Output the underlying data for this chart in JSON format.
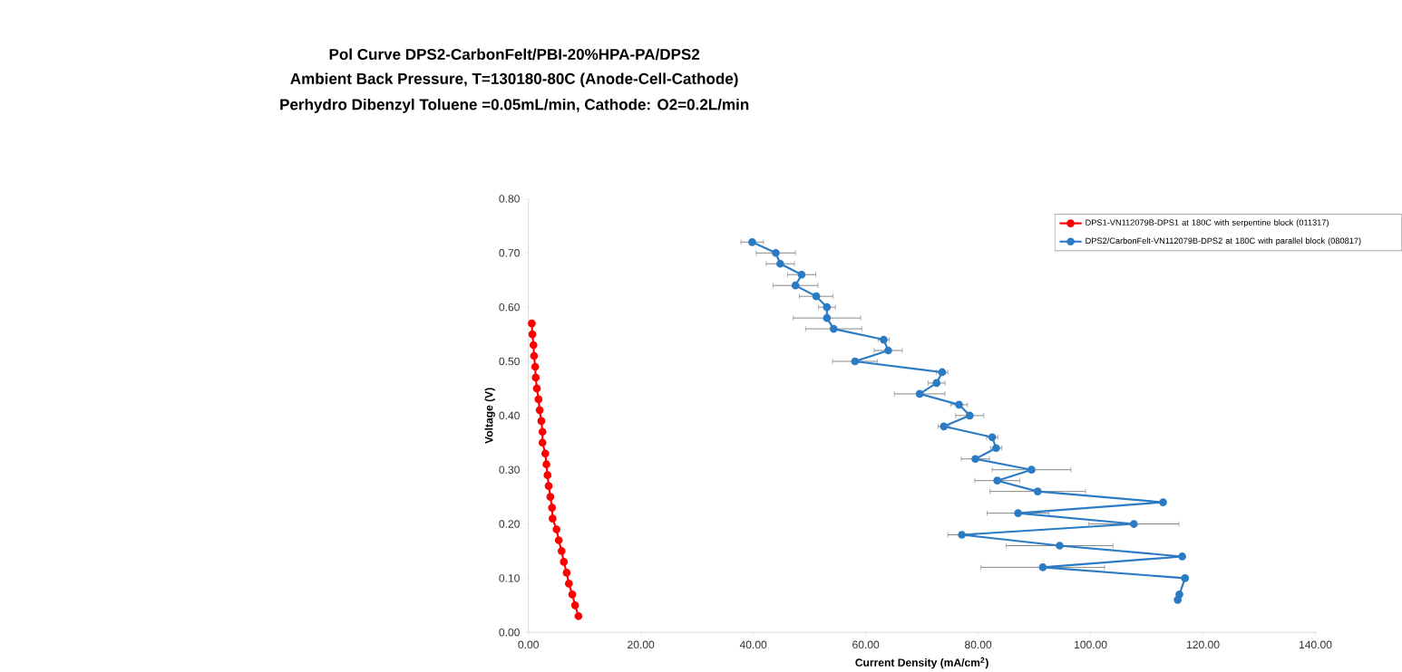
{
  "chart_data": {
    "type": "line",
    "title": "Pol Curve DPS2-CarbonFelt/PBI-20%HPA-PA/DPS2",
    "subtitle": "Ambient Back Pressure, T=130180-80C (Anode-Cell-Cathode)",
    "annotations": [
      "Perhydro Dibenzyl Toluene =0.05mL/min, Cathode: O2=0.2L/min"
    ],
    "xlabel": "Current Density (mA/cm$^{2}$)",
    "ylabel": "Voltage (V)",
    "xlim": [
      0,
      140
    ],
    "ylim": [
      0,
      0.8
    ],
    "xticks": [
      {
        "value": 0,
        "label": "0.00"
      },
      {
        "value": 20,
        "label": "20.00"
      },
      {
        "value": 40,
        "label": "40.00"
      },
      {
        "value": 60,
        "label": "60.00"
      },
      {
        "value": 80,
        "label": "80.00"
      },
      {
        "value": 100,
        "label": "100.00"
      },
      {
        "value": 120,
        "label": "120.00"
      },
      {
        "value": 140,
        "label": "140.00"
      }
    ],
    "yticks": [
      {
        "value": 0,
        "label": "0.00"
      },
      {
        "value": 0.1,
        "label": "0.10"
      },
      {
        "value": 0.2,
        "label": "0.20"
      },
      {
        "value": 0.3,
        "label": "0.30"
      },
      {
        "value": 0.4,
        "label": "0.40"
      },
      {
        "value": 0.5,
        "label": "0.50"
      },
      {
        "value": 0.6,
        "label": "0.60"
      },
      {
        "value": 0.7,
        "label": "0.70"
      },
      {
        "value": 0.8,
        "label": "0.80"
      }
    ],
    "grid": false,
    "legend": "top right",
    "marker": "circle",
    "line_style": "solid",
    "series": [
      {
        "name": "DPS1-VN112079B-DPS1 at 180C with serpentine block (011317)",
        "color": "#ff0000",
        "x": [
          0.6,
          0.7,
          0.9,
          1.0,
          1.2,
          1.3,
          1.5,
          1.8,
          2.0,
          2.3,
          2.5,
          2.5,
          3.0,
          3.2,
          3.4,
          3.6,
          3.9,
          4.2,
          4.3,
          5.0,
          5.4,
          5.9,
          6.3,
          6.8,
          7.2,
          7.8,
          8.3,
          8.9
        ],
        "values": [
          0.57,
          0.55,
          0.53,
          0.51,
          0.49,
          0.47,
          0.45,
          0.43,
          0.41,
          0.39,
          0.37,
          0.35,
          0.33,
          0.31,
          0.29,
          0.27,
          0.25,
          0.23,
          0.21,
          0.19,
          0.17,
          0.15,
          0.13,
          0.11,
          0.09,
          0.07,
          0.05,
          0.03
        ]
      },
      {
        "name": "DPS2/CarbonFelt-VN112079B-DPS2 at 180C with parallel block (080817)",
        "color": "#2b7bc4",
        "x": [
          39.8,
          44.0,
          44.8,
          48.6,
          47.5,
          51.2,
          53.1,
          53.1,
          54.3,
          63.2,
          64.0,
          58.1,
          73.6,
          72.6,
          69.6,
          76.6,
          78.5,
          73.9,
          82.5,
          83.2,
          79.5,
          89.5,
          83.4,
          90.6,
          112.9,
          87.1,
          107.7,
          77.1,
          94.5,
          116.3,
          91.5,
          116.8,
          115.8,
          115.5
        ],
        "values": [
          0.72,
          0.7,
          0.68,
          0.66,
          0.64,
          0.62,
          0.6,
          0.58,
          0.56,
          0.54,
          0.52,
          0.5,
          0.48,
          0.46,
          0.44,
          0.42,
          0.4,
          0.38,
          0.36,
          0.34,
          0.32,
          0.3,
          0.28,
          0.26,
          0.24,
          0.22,
          0.2,
          0.18,
          0.16,
          0.14,
          0.12,
          0.1,
          0.07,
          0.06
        ],
        "xerrors": [
          2,
          3.5,
          2.5,
          2.5,
          4,
          3,
          1.5,
          6,
          5,
          1,
          2.5,
          4,
          1,
          1.5,
          4.5,
          1.5,
          2.5,
          1,
          1,
          1,
          2.5,
          7,
          4,
          8.5,
          null,
          5.5,
          8,
          2.5,
          9.5,
          null,
          11,
          null,
          null,
          null
        ]
      }
    ]
  }
}
